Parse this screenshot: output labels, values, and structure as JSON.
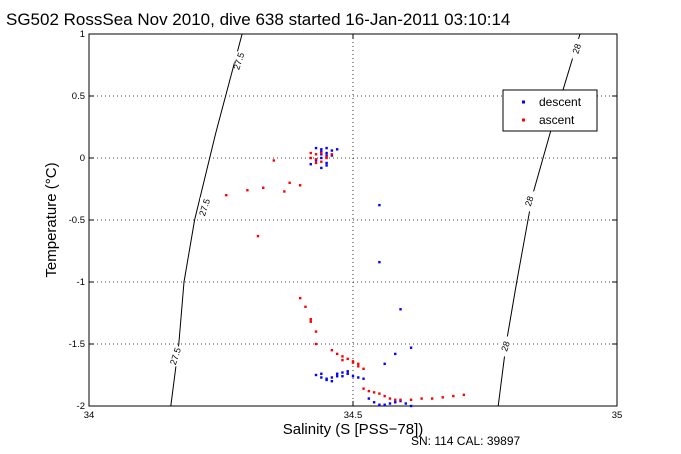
{
  "chart_data": {
    "type": "scatter",
    "title": "SG502 RossSea Nov 2010, dive 638 started 16-Jan-2011 03:10:14",
    "xlabel": "Salinity (S [PSS−78])",
    "ylabel": "Temperature (°C)",
    "xlim": [
      34,
      35
    ],
    "ylim": [
      -2,
      1
    ],
    "xticks": [
      34,
      34.5,
      35
    ],
    "xtick_labels": [
      "34",
      "34.5",
      "35"
    ],
    "yticks": [
      -2,
      -1.5,
      -1,
      -0.5,
      0,
      0.5,
      1
    ],
    "ytick_labels": [
      "-2",
      "-1.5",
      "-1",
      "-0.5",
      "0",
      "0.5",
      "1"
    ],
    "grid": true,
    "legend_position": "top-right",
    "series": [
      {
        "name": "descent",
        "color": "#0000ff",
        "points": [
          [
            34.43,
            0.08
          ],
          [
            34.44,
            0.07
          ],
          [
            34.45,
            0.08
          ],
          [
            34.44,
            0.05
          ],
          [
            34.45,
            0.04
          ],
          [
            34.46,
            0.06
          ],
          [
            34.45,
            0.02
          ],
          [
            34.44,
            0.0
          ],
          [
            34.43,
            -0.02
          ],
          [
            34.45,
            -0.04
          ],
          [
            34.44,
            0.03
          ],
          [
            34.46,
            0.02
          ],
          [
            34.47,
            0.07
          ],
          [
            34.42,
            -0.05
          ],
          [
            34.44,
            -0.08
          ],
          [
            34.45,
            -0.06
          ],
          [
            34.55,
            -0.38
          ],
          [
            34.55,
            -0.84
          ],
          [
            34.59,
            -1.22
          ],
          [
            34.56,
            -1.66
          ],
          [
            34.58,
            -1.58
          ],
          [
            34.61,
            -1.53
          ],
          [
            34.43,
            -1.75
          ],
          [
            34.44,
            -1.77
          ],
          [
            34.45,
            -1.78
          ],
          [
            34.46,
            -1.77
          ],
          [
            34.47,
            -1.74
          ],
          [
            34.48,
            -1.73
          ],
          [
            34.49,
            -1.74
          ],
          [
            34.5,
            -1.76
          ],
          [
            34.44,
            -1.74
          ],
          [
            34.45,
            -1.79
          ],
          [
            34.46,
            -1.8
          ],
          [
            34.47,
            -1.76
          ],
          [
            34.48,
            -1.76
          ],
          [
            34.49,
            -1.72
          ],
          [
            34.51,
            -1.77
          ],
          [
            34.52,
            -1.78
          ],
          [
            34.53,
            -1.94
          ],
          [
            34.54,
            -1.97
          ],
          [
            34.55,
            -1.99
          ],
          [
            34.56,
            -1.99
          ],
          [
            34.57,
            -1.98
          ],
          [
            34.58,
            -1.97
          ],
          [
            34.59,
            -1.96
          ],
          [
            34.6,
            -1.98
          ],
          [
            34.61,
            -2.0
          ]
        ]
      },
      {
        "name": "ascent",
        "color": "#ff0000",
        "points": [
          [
            34.42,
            0.0
          ],
          [
            34.43,
            -0.01
          ],
          [
            34.44,
            0.04
          ],
          [
            34.45,
            0.01
          ],
          [
            34.43,
            0.03
          ],
          [
            34.44,
            -0.03
          ],
          [
            34.45,
            0.0
          ],
          [
            34.46,
            0.03
          ],
          [
            34.42,
            0.04
          ],
          [
            34.43,
            -0.04
          ],
          [
            34.35,
            -0.02
          ],
          [
            34.38,
            -0.2
          ],
          [
            34.4,
            -0.22
          ],
          [
            34.37,
            -0.27
          ],
          [
            34.33,
            -0.24
          ],
          [
            34.3,
            -0.26
          ],
          [
            34.26,
            -0.3
          ],
          [
            34.32,
            -0.63
          ],
          [
            34.4,
            -1.13
          ],
          [
            34.41,
            -1.2
          ],
          [
            34.42,
            -1.3
          ],
          [
            34.43,
            -1.4
          ],
          [
            34.42,
            -1.32
          ],
          [
            34.43,
            -1.5
          ],
          [
            34.46,
            -1.55
          ],
          [
            34.47,
            -1.58
          ],
          [
            34.48,
            -1.6
          ],
          [
            34.49,
            -1.62
          ],
          [
            34.5,
            -1.64
          ],
          [
            34.51,
            -1.66
          ],
          [
            34.52,
            -1.7
          ],
          [
            34.51,
            -1.68
          ],
          [
            34.5,
            -1.65
          ],
          [
            34.48,
            -1.63
          ],
          [
            34.52,
            -1.86
          ],
          [
            34.53,
            -1.88
          ],
          [
            34.54,
            -1.89
          ],
          [
            34.55,
            -1.9
          ],
          [
            34.56,
            -1.92
          ],
          [
            34.57,
            -1.94
          ],
          [
            34.58,
            -1.95
          ],
          [
            34.59,
            -1.95
          ],
          [
            34.61,
            -1.95
          ],
          [
            34.63,
            -1.94
          ],
          [
            34.65,
            -1.94
          ],
          [
            34.67,
            -1.93
          ],
          [
            34.69,
            -1.92
          ],
          [
            34.71,
            -1.91
          ]
        ]
      }
    ],
    "contours": [
      {
        "label": "27.5",
        "points": [
          [
            34.29,
            1.0
          ],
          [
            34.24,
            0.2
          ],
          [
            34.2,
            -0.5
          ],
          [
            34.18,
            -1.0
          ],
          [
            34.17,
            -1.5
          ],
          [
            34.155,
            -2.0
          ]
        ]
      },
      {
        "label": "28",
        "points": [
          [
            34.93,
            1.0
          ],
          [
            34.88,
            0.3
          ],
          [
            34.84,
            -0.3
          ],
          [
            34.81,
            -1.0
          ],
          [
            34.79,
            -1.5
          ],
          [
            34.775,
            -2.0
          ]
        ]
      }
    ],
    "contour_labels": [
      {
        "label": "27.5",
        "x": 34.285,
        "y": 0.78
      },
      {
        "label": "27.5",
        "x": 34.22,
        "y": -0.4
      },
      {
        "label": "27.5",
        "x": 34.165,
        "y": -1.6
      },
      {
        "label": "28",
        "x": 34.925,
        "y": 0.88
      },
      {
        "label": "28",
        "x": 34.835,
        "y": -0.35
      },
      {
        "label": "28",
        "x": 34.79,
        "y": -1.52
      }
    ],
    "footer": "SN: 114  CAL: 39897"
  }
}
